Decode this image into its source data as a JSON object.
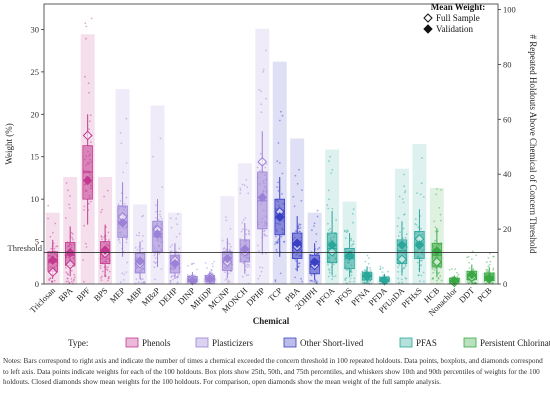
{
  "chart_data": {
    "type": "bar+box+strip",
    "xlabel": "Chemical",
    "ylabel_left": "Weight (%)",
    "ylabel_right": "# Repeated Holdouts Above Chemical of Concern Threshold",
    "ylim_left": [
      0,
      33
    ],
    "ylim_right": [
      0,
      102
    ],
    "yticks_left": [
      0,
      5,
      10,
      15,
      20,
      25,
      30
    ],
    "yticks_right": [
      0,
      20,
      40,
      60,
      80,
      100
    ],
    "threshold": {
      "label": "Threshold",
      "value": 3.7
    },
    "legend_mean": {
      "title": "Mean Weight:",
      "items": [
        {
          "label": "Full Sample",
          "style": "open"
        },
        {
          "label": "Validation",
          "style": "closed"
        }
      ]
    },
    "type_legend": {
      "title": "Type:",
      "items": [
        {
          "label": "Phenols",
          "color": "#c23a8f"
        },
        {
          "label": "Plasticizers",
          "color": "#9b82d6"
        },
        {
          "label": "Other Short-lived",
          "color": "#3b3fc4"
        },
        {
          "label": "PFAS",
          "color": "#2aa79a"
        },
        {
          "label": "Persistent Chlorinated",
          "color": "#3aa844"
        }
      ]
    },
    "type_colors": {
      "Phenols": "#c23a8f",
      "Plasticizers": "#9b82d6",
      "Other Short-lived": "#3b3fc4",
      "PFAS": "#2aa79a",
      "Persistent Chlorinated": "#3aa844"
    },
    "categories": [
      {
        "name": "Triclosan",
        "type": "Phenols",
        "bar": 26,
        "p10": 0.6,
        "q1": 1.5,
        "med": 2.6,
        "q3": 3.8,
        "p90": 5.2,
        "full": 1.4,
        "val": 2.8
      },
      {
        "name": "BPA",
        "type": "Phenols",
        "bar": 39,
        "p10": 0.9,
        "q1": 2.2,
        "med": 3.4,
        "q3": 4.9,
        "p90": 6.8,
        "full": 2.3,
        "val": 3.7
      },
      {
        "name": "BPF",
        "type": "Phenols",
        "bar": 91,
        "p10": 7.0,
        "q1": 10.0,
        "med": 13.2,
        "q3": 16.3,
        "p90": 20.0,
        "full": 17.5,
        "val": 12.2
      },
      {
        "name": "BPS",
        "type": "Phenols",
        "bar": 39,
        "p10": 1.0,
        "q1": 2.4,
        "med": 3.8,
        "q3": 5.0,
        "p90": 7.0,
        "full": 3.6,
        "val": 4.0
      },
      {
        "name": "MEP",
        "type": "Plasticizers",
        "bar": 71,
        "p10": 3.2,
        "q1": 5.5,
        "med": 7.3,
        "q3": 9.2,
        "p90": 12.0,
        "full": 7.9,
        "val": 7.2
      },
      {
        "name": "MBP",
        "type": "Plasticizers",
        "bar": 29,
        "p10": 0.6,
        "q1": 1.3,
        "med": 2.4,
        "q3": 3.6,
        "p90": 5.0,
        "full": 2.4,
        "val": 2.7
      },
      {
        "name": "MBzP",
        "type": "Plasticizers",
        "bar": 65,
        "p10": 2.0,
        "q1": 3.8,
        "med": 5.6,
        "q3": 7.4,
        "p90": 10.0,
        "full": 6.4,
        "val": 5.9
      },
      {
        "name": "DEHP",
        "type": "Plasticizers",
        "bar": 26,
        "p10": 0.6,
        "q1": 1.3,
        "med": 2.4,
        "q3": 3.4,
        "p90": 4.8,
        "full": 2.8,
        "val": 2.4
      },
      {
        "name": "DINP",
        "type": "Plasticizers",
        "bar": 2,
        "p10": 0.1,
        "q1": 0.3,
        "med": 0.5,
        "q3": 0.9,
        "p90": 1.4,
        "full": 0.6,
        "val": 0.4
      },
      {
        "name": "MHiDP",
        "type": "Plasticizers",
        "bar": 2,
        "p10": 0.1,
        "q1": 0.3,
        "med": 0.6,
        "q3": 1.0,
        "p90": 1.5,
        "full": 0.8,
        "val": 0.6
      },
      {
        "name": "MCiNP",
        "type": "Plasticizers",
        "bar": 32,
        "p10": 0.7,
        "q1": 1.6,
        "med": 2.6,
        "q3": 3.8,
        "p90": 5.4,
        "full": 2.6,
        "val": 3.0
      },
      {
        "name": "MONCH",
        "type": "Plasticizers",
        "bar": 44,
        "p10": 1.2,
        "q1": 2.6,
        "med": 3.8,
        "q3": 5.2,
        "p90": 7.2,
        "full": 3.8,
        "val": 4.1
      },
      {
        "name": "DPHP",
        "type": "Plasticizers",
        "bar": 93,
        "p10": 3.5,
        "q1": 6.5,
        "med": 9.8,
        "q3": 13.2,
        "p90": 18.0,
        "full": 14.4,
        "val": 10.2
      },
      {
        "name": "TCP",
        "type": "Other Short-lived",
        "bar": 81,
        "p10": 3.2,
        "q1": 5.8,
        "med": 7.8,
        "q3": 10.0,
        "p90": 12.6,
        "full": 8.5,
        "val": 7.9
      },
      {
        "name": "PBA",
        "type": "Other Short-lived",
        "bar": 53,
        "p10": 1.5,
        "q1": 3.0,
        "med": 4.6,
        "q3": 6.0,
        "p90": 8.0,
        "full": 4.4,
        "val": 4.8
      },
      {
        "name": "2OHPH",
        "type": "Other Short-lived",
        "bar": 26,
        "p10": 0.5,
        "q1": 1.2,
        "med": 2.3,
        "q3": 3.4,
        "p90": 4.8,
        "full": 2.2,
        "val": 2.6
      },
      {
        "name": "PFOA",
        "type": "PFAS",
        "bar": 49,
        "p10": 1.0,
        "q1": 2.5,
        "med": 4.2,
        "q3": 6.0,
        "p90": 8.6,
        "full": 3.8,
        "val": 4.6
      },
      {
        "name": "PFOS",
        "type": "PFAS",
        "bar": 30,
        "p10": 0.8,
        "q1": 1.8,
        "med": 3.0,
        "q3": 4.2,
        "p90": 6.0,
        "full": 3.3,
        "val": 3.4
      },
      {
        "name": "PFNA",
        "type": "PFAS",
        "bar": 4,
        "p10": 0.2,
        "q1": 0.5,
        "med": 0.9,
        "q3": 1.4,
        "p90": 2.1,
        "full": 1.0,
        "val": 0.9
      },
      {
        "name": "PFDA",
        "type": "PFAS",
        "bar": 2,
        "p10": 0.1,
        "q1": 0.3,
        "med": 0.5,
        "q3": 0.8,
        "p90": 1.2,
        "full": 0.4,
        "val": 0.4
      },
      {
        "name": "PFUnDA",
        "type": "PFAS",
        "bar": 42,
        "p10": 1.0,
        "q1": 2.4,
        "med": 3.9,
        "q3": 5.2,
        "p90": 7.4,
        "full": 2.9,
        "val": 4.6
      },
      {
        "name": "PFHxS",
        "type": "PFAS",
        "bar": 51,
        "p10": 1.4,
        "q1": 3.0,
        "med": 4.6,
        "q3": 6.2,
        "p90": 8.8,
        "full": 5.3,
        "val": 4.6
      },
      {
        "name": "HCB",
        "type": "Persistent Chlorinated",
        "bar": 35,
        "p10": 0.8,
        "q1": 2.0,
        "med": 3.4,
        "q3": 4.8,
        "p90": 6.6,
        "full": 2.6,
        "val": 3.9
      },
      {
        "name": "Nonachlor",
        "type": "Persistent Chlorinated",
        "bar": 2,
        "p10": 0.1,
        "q1": 0.2,
        "med": 0.4,
        "q3": 0.7,
        "p90": 1.0,
        "full": 0.2,
        "val": 0.4
      },
      {
        "name": "DDT",
        "type": "Persistent Chlorinated",
        "bar": 5,
        "p10": 0.2,
        "q1": 0.5,
        "med": 0.9,
        "q3": 1.5,
        "p90": 2.3,
        "full": 0.8,
        "val": 1.1
      },
      {
        "name": "PCB",
        "type": "Persistent Chlorinated",
        "bar": 4,
        "p10": 0.2,
        "q1": 0.4,
        "med": 0.8,
        "q3": 1.3,
        "p90": 2.0,
        "full": 0.6,
        "val": 0.7
      }
    ]
  },
  "notes": "Notes: Bars correspond to right axis and indicate the number of times a chemical exceeded the concern threshold in 100 repeated holdouts. Data points, boxplots, and diamonds correspond to left axis. Data points indicate weights for each of the 100 holdouts. Box plots show 25th, 50th, and 75th percentiles, and whiskers show 10th and 90th percentiles of weights for the 100 holdouts. Closed diamonds show mean weights for the 100 holdouts. For comparison, open diamonds show the mean weight of the full sample analysis."
}
